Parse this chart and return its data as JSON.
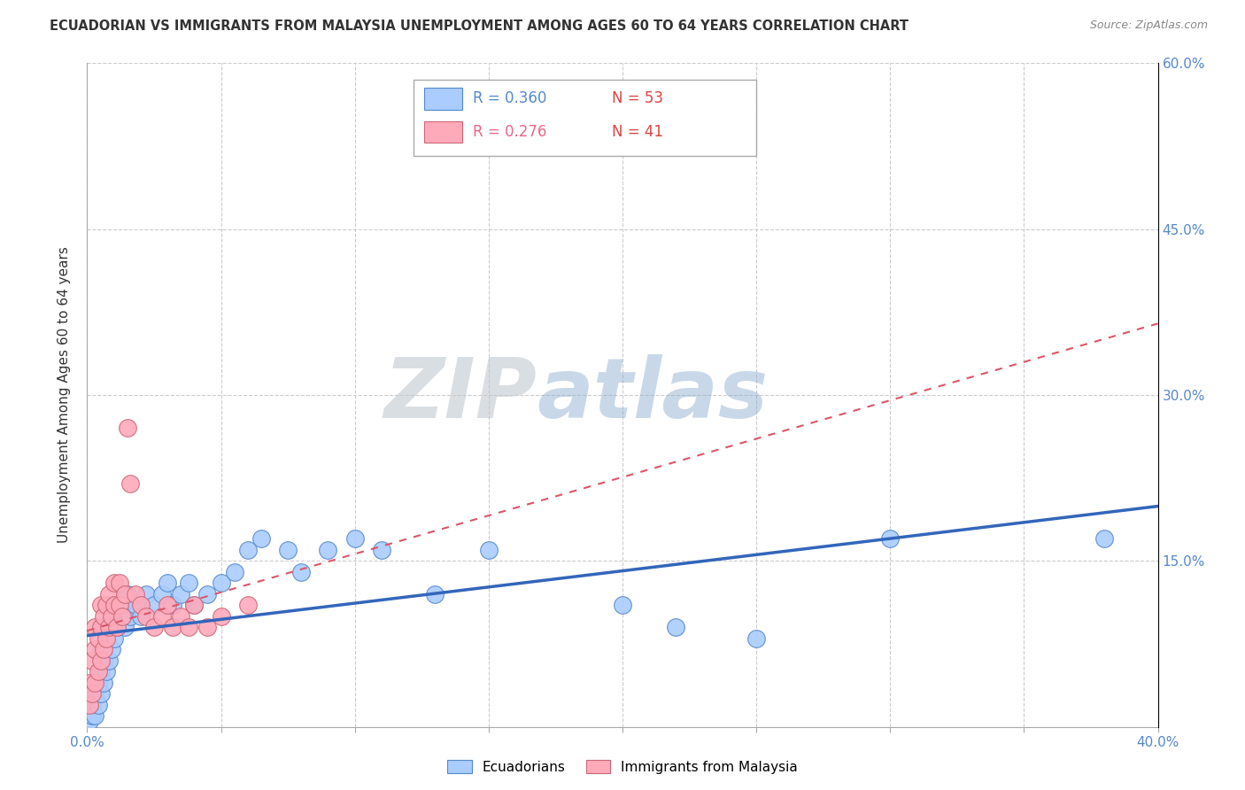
{
  "title": "ECUADORIAN VS IMMIGRANTS FROM MALAYSIA UNEMPLOYMENT AMONG AGES 60 TO 64 YEARS CORRELATION CHART",
  "source": "Source: ZipAtlas.com",
  "ylabel": "Unemployment Among Ages 60 to 64 years",
  "xlim": [
    0,
    0.4
  ],
  "ylim": [
    0,
    0.6
  ],
  "ytick_positions": [
    0.0,
    0.15,
    0.3,
    0.45,
    0.6
  ],
  "ytick_labels": [
    "",
    "15.0%",
    "30.0%",
    "45.0%",
    "60.0%"
  ],
  "xtick_labels": [
    "0.0%",
    "",
    "",
    "",
    "",
    "",
    "",
    "",
    "40.0%"
  ],
  "watermark_zip": "ZIP",
  "watermark_atlas": "atlas",
  "blue_color": "#aaccff",
  "blue_edge": "#5588cc",
  "pink_color": "#ffaabb",
  "pink_edge": "#cc6677",
  "trendline_blue_color": "#3366bb",
  "trendline_pink_color": "#dd5566",
  "legend_R_blue": "0.360",
  "legend_N_blue": "53",
  "legend_R_pink": "0.276",
  "legend_N_pink": "41",
  "blue_scatter_x": [
    0.001,
    0.002,
    0.002,
    0.003,
    0.003,
    0.004,
    0.004,
    0.005,
    0.005,
    0.005,
    0.006,
    0.006,
    0.007,
    0.007,
    0.008,
    0.008,
    0.009,
    0.009,
    0.01,
    0.01,
    0.011,
    0.012,
    0.013,
    0.014,
    0.015,
    0.016,
    0.018,
    0.02,
    0.022,
    0.025,
    0.028,
    0.03,
    0.032,
    0.035,
    0.038,
    0.04,
    0.045,
    0.05,
    0.055,
    0.06,
    0.065,
    0.075,
    0.08,
    0.09,
    0.1,
    0.11,
    0.13,
    0.15,
    0.2,
    0.22,
    0.25,
    0.3,
    0.38
  ],
  "blue_scatter_y": [
    0.005,
    0.01,
    0.02,
    0.01,
    0.03,
    0.02,
    0.04,
    0.03,
    0.05,
    0.07,
    0.04,
    0.06,
    0.05,
    0.08,
    0.06,
    0.09,
    0.07,
    0.1,
    0.08,
    0.11,
    0.09,
    0.1,
    0.11,
    0.09,
    0.12,
    0.1,
    0.11,
    0.1,
    0.12,
    0.11,
    0.12,
    0.13,
    0.11,
    0.12,
    0.13,
    0.11,
    0.12,
    0.13,
    0.14,
    0.16,
    0.17,
    0.16,
    0.14,
    0.16,
    0.17,
    0.16,
    0.12,
    0.16,
    0.11,
    0.09,
    0.08,
    0.17,
    0.17
  ],
  "pink_scatter_x": [
    0.001,
    0.001,
    0.002,
    0.002,
    0.003,
    0.003,
    0.003,
    0.004,
    0.004,
    0.005,
    0.005,
    0.005,
    0.006,
    0.006,
    0.007,
    0.007,
    0.008,
    0.008,
    0.009,
    0.01,
    0.01,
    0.011,
    0.012,
    0.012,
    0.013,
    0.014,
    0.015,
    0.016,
    0.018,
    0.02,
    0.022,
    0.025,
    0.028,
    0.03,
    0.032,
    0.035,
    0.038,
    0.04,
    0.045,
    0.05,
    0.06
  ],
  "pink_scatter_y": [
    0.02,
    0.04,
    0.03,
    0.06,
    0.04,
    0.07,
    0.09,
    0.05,
    0.08,
    0.06,
    0.09,
    0.11,
    0.07,
    0.1,
    0.08,
    0.11,
    0.09,
    0.12,
    0.1,
    0.11,
    0.13,
    0.09,
    0.11,
    0.13,
    0.1,
    0.12,
    0.27,
    0.22,
    0.12,
    0.11,
    0.1,
    0.09,
    0.1,
    0.11,
    0.09,
    0.1,
    0.09,
    0.11,
    0.09,
    0.1,
    0.11
  ]
}
